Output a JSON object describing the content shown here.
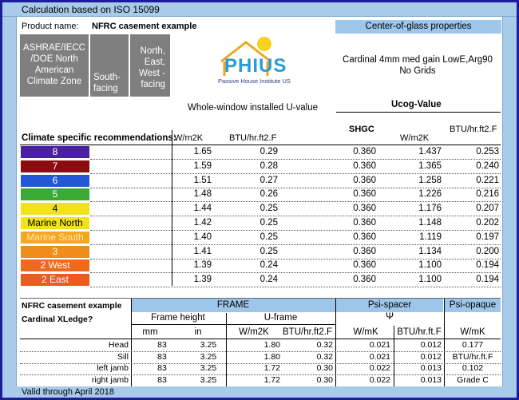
{
  "top_title": "Calculation based on ISO 15099",
  "footer": "Valid through April 2018",
  "product_label": "Product name:",
  "product_name": "NFRC casement example",
  "climate_box": "ASHRAE/IECC /DOE North American Climate Zone",
  "south_box": "South-facing",
  "north_box": "North, East, West - facing",
  "logo": {
    "name": "PHIUS",
    "subtitle": "Passive House Institute US"
  },
  "cog": {
    "header": "Center-of-glass properties",
    "glass": "Cardinal 4mm med gain LowE,Arg90",
    "grids": "No Grids"
  },
  "ww_label": "Whole-window installed U-value",
  "ucog_label": "Ucog-Value",
  "climate_rec": "Climate specific recommendations:",
  "col_heads": {
    "wm2k": "W/m2K",
    "btu": "BTU/hr.ft2.F",
    "shgc": "SHGC",
    "wm2k2": "W/m2K",
    "btu2": "BTU/hr.ft2.F"
  },
  "zones": [
    {
      "label": "8",
      "color": "#4b1fa6",
      "txt": "#ffffff",
      "u": "1.65",
      "btu": "0.29",
      "shgc": "0.360",
      "ucog": "1.437",
      "ucogb": "0.253"
    },
    {
      "label": "7",
      "color": "#8b0d0d",
      "txt": "#ffffff",
      "u": "1.59",
      "btu": "0.28",
      "shgc": "0.360",
      "ucog": "1.365",
      "ucogb": "0.240"
    },
    {
      "label": "6",
      "color": "#2457d6",
      "txt": "#ffffff",
      "u": "1.51",
      "btu": "0.27",
      "shgc": "0.360",
      "ucog": "1.258",
      "ucogb": "0.221"
    },
    {
      "label": "5",
      "color": "#3aaa35",
      "txt": "#ffffff",
      "u": "1.48",
      "btu": "0.26",
      "shgc": "0.360",
      "ucog": "1.226",
      "ucogb": "0.216"
    },
    {
      "label": "4",
      "color": "#f0e31c",
      "txt": "#000000",
      "u": "1.44",
      "btu": "0.25",
      "shgc": "0.360",
      "ucog": "1.176",
      "ucogb": "0.207"
    },
    {
      "label": "Marine North",
      "color": "#f0e31c",
      "txt": "#000000",
      "u": "1.42",
      "btu": "0.25",
      "shgc": "0.360",
      "ucog": "1.148",
      "ucogb": "0.202"
    },
    {
      "label": "Marine South",
      "color": "#f5a623",
      "txt": "#ffe9a8",
      "u": "1.40",
      "btu": "0.25",
      "shgc": "0.360",
      "ucog": "1.119",
      "ucogb": "0.197"
    },
    {
      "label": "3",
      "color": "#f08c1b",
      "txt": "#ffffff",
      "u": "1.41",
      "btu": "0.25",
      "shgc": "0.360",
      "ucog": "1.134",
      "ucogb": "0.200"
    },
    {
      "label": "2 West",
      "color": "#ef6a1f",
      "txt": "#ffffff",
      "u": "1.39",
      "btu": "0.24",
      "shgc": "0.360",
      "ucog": "1.100",
      "ucogb": "0.194"
    },
    {
      "label": "2 East",
      "color": "#ef5a1f",
      "txt": "#ffffff",
      "u": "1.39",
      "btu": "0.24",
      "shgc": "0.360",
      "ucog": "1.100",
      "ucogb": "0.194"
    }
  ],
  "frame_table": {
    "title1": "NFRC casement example",
    "title2": "Cardinal XLedge?",
    "frame": "FRAME",
    "psi_spacer": "Psi-spacer",
    "psi_opaque": "Psi-opaque",
    "frame_height": "Frame height",
    "u_frame": "U-frame",
    "psi_symbol": "Ψ",
    "units": [
      "mm",
      "in",
      "W/m2K",
      "BTU/hr.ft2.F",
      "W/mK",
      "BTU/hr.ft.F",
      "W/mK"
    ],
    "rows": [
      {
        "name": "Head",
        "mm": "83",
        "in": "3.25",
        "u": "1.80",
        "btu": "0.32",
        "psi": "0.021",
        "psib": "0.012",
        "op": "0.177"
      },
      {
        "name": "Sill",
        "mm": "83",
        "in": "3.25",
        "u": "1.80",
        "btu": "0.32",
        "psi": "0.021",
        "psib": "0.012",
        "op": "BTU/hr.ft.F"
      },
      {
        "name": "left jamb",
        "mm": "83",
        "in": "3.25",
        "u": "1.72",
        "btu": "0.30",
        "psi": "0.022",
        "psib": "0.013",
        "op": "0.102"
      },
      {
        "name": "right jamb",
        "mm": "83",
        "in": "3.25",
        "u": "1.72",
        "btu": "0.30",
        "psi": "0.022",
        "psib": "0.013",
        "op": "Grade C"
      }
    ]
  }
}
